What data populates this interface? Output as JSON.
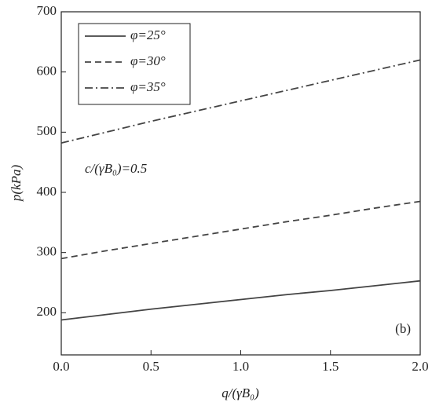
{
  "chart_data": {
    "type": "line",
    "x": [
      0,
      0.25,
      0.5,
      0.75,
      1.0,
      1.25,
      1.5,
      1.75,
      2.0
    ],
    "series": [
      {
        "name": "φ=25°",
        "color": "#444444",
        "dash": "solid",
        "values": [
          188,
          197,
          206,
          214,
          222,
          230,
          237,
          245,
          253
        ]
      },
      {
        "name": "φ=30°",
        "color": "#444444",
        "dash": "dashed",
        "values": [
          290,
          303,
          315,
          327,
          339,
          351,
          362,
          374,
          385
        ]
      },
      {
        "name": "φ=35°",
        "color": "#444444",
        "dash": "dashdot",
        "values": [
          482,
          500,
          518,
          535,
          552,
          569,
          586,
          603,
          620
        ]
      }
    ],
    "xlabel": "q/(γB₀)",
    "ylabel": "p(kPa)",
    "annotation": "c/(γB₀)=0.5",
    "panel_label": "(b)",
    "xlim": [
      0,
      2.0
    ],
    "xticks": [
      {
        "value": 0,
        "label": "0.0"
      },
      {
        "value": 0.5,
        "label": "0.5"
      },
      {
        "value": 1.0,
        "label": "1.0"
      },
      {
        "value": 1.5,
        "label": "1.5"
      },
      {
        "value": 2.0,
        "label": "2.0"
      }
    ],
    "ylim": [
      130,
      700
    ],
    "yticks": [
      200,
      300,
      400,
      500,
      600,
      700
    ],
    "legend": "upper left",
    "grid": false
  }
}
